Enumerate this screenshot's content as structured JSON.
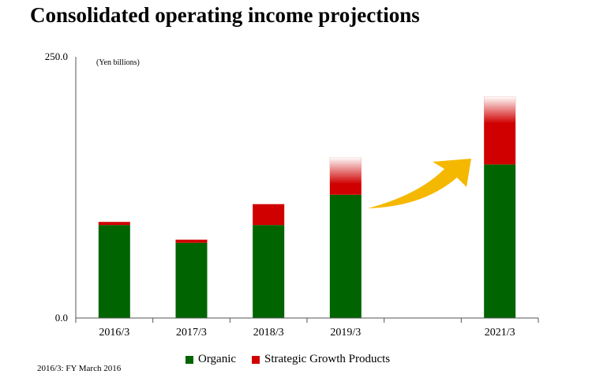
{
  "title": "Consolidated operating income projections",
  "footnote": "2016/3: FY March 2016",
  "colors": {
    "organic": "#006400",
    "strategic": "#d00000",
    "arrow": "#f5b800"
  },
  "chart_data": {
    "type": "bar",
    "stacked": true,
    "unit_label": "(Yen billions)",
    "categories": [
      "2016/3",
      "2017/3",
      "2018/3",
      "2019/3",
      "",
      "2021/3"
    ],
    "series": [
      {
        "name": "Organic",
        "values": [
          89,
          72,
          89,
          118,
          null,
          147
        ]
      },
      {
        "name": "Strategic Growth Products",
        "values": [
          3,
          3,
          20,
          36,
          null,
          65
        ]
      }
    ],
    "faded_top": [
      false,
      false,
      false,
      true,
      false,
      true
    ],
    "ylim": [
      0,
      250
    ],
    "yticks": [
      "0.0",
      "250.0"
    ],
    "legend_position": "bottom-center",
    "annotation": "growth arrow from 2019/3 toward 2021/3"
  }
}
